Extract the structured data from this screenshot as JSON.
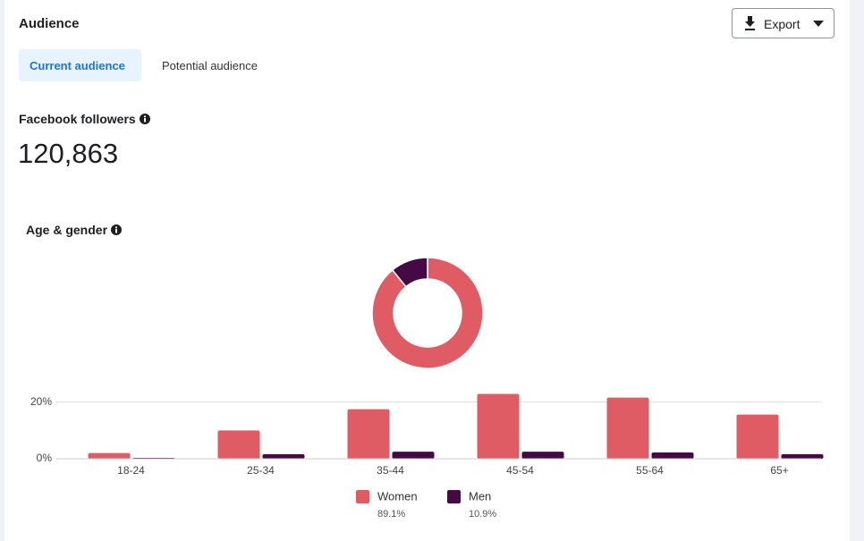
{
  "header": {
    "title": "Audience",
    "export": "Export"
  },
  "tabs": [
    "Current audience",
    "Potential audience"
  ],
  "followers": {
    "label": "Facebook followers",
    "value": "120,863"
  },
  "chart_data": {
    "type": "bar",
    "title": "Age & gender",
    "categories": [
      "18-24",
      "25-34",
      "35-44",
      "45-54",
      "55-64",
      "65+"
    ],
    "series": [
      {
        "name": "Women",
        "color": "#e05c65",
        "values": [
          2,
          10,
          17.5,
          22.9,
          21.6,
          15.6
        ],
        "share": 89.1,
        "share_label": "89.1%"
      },
      {
        "name": "Men",
        "color": "#440a44",
        "values": [
          0.3,
          1.6,
          2.5,
          2.5,
          2.2,
          1.6
        ],
        "share": 10.9,
        "share_label": "10.9%"
      }
    ],
    "ylim": [
      0,
      24
    ],
    "yticks": [
      {
        "value": 0,
        "label": "0%"
      },
      {
        "value": 20,
        "label": "20%"
      }
    ],
    "grid": true
  }
}
